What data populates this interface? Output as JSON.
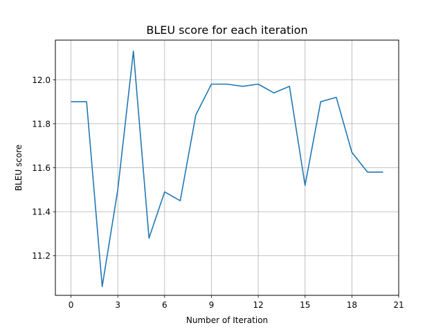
{
  "chart_data": {
    "type": "line",
    "title": "BLEU score for each iteration",
    "xlabel": "Number of Iteration",
    "ylabel": "BLEU score",
    "xlim": [
      -1,
      21
    ],
    "ylim": [
      11.02,
      12.18
    ],
    "xticks": [
      0,
      3,
      6,
      9,
      12,
      15,
      18,
      21
    ],
    "yticks": [
      11.2,
      11.4,
      11.6,
      11.8,
      12.0
    ],
    "xtick_labels": [
      "0",
      "3",
      "6",
      "9",
      "12",
      "15",
      "18",
      "21"
    ],
    "ytick_labels": [
      "11.2",
      "11.4",
      "11.6",
      "11.8",
      "12.0"
    ],
    "grid": true,
    "series": [
      {
        "color": "#1f77b4",
        "x": [
          0,
          1,
          2,
          3,
          4,
          5,
          6,
          7,
          8,
          9,
          10,
          11,
          12,
          13,
          14,
          15,
          16,
          17,
          18,
          19,
          20
        ],
        "y": [
          11.9,
          11.9,
          11.06,
          11.5,
          12.13,
          11.28,
          11.49,
          11.45,
          11.84,
          11.98,
          11.98,
          11.97,
          11.98,
          11.94,
          11.97,
          11.52,
          11.9,
          11.92,
          11.67,
          11.58,
          11.58
        ]
      }
    ]
  }
}
